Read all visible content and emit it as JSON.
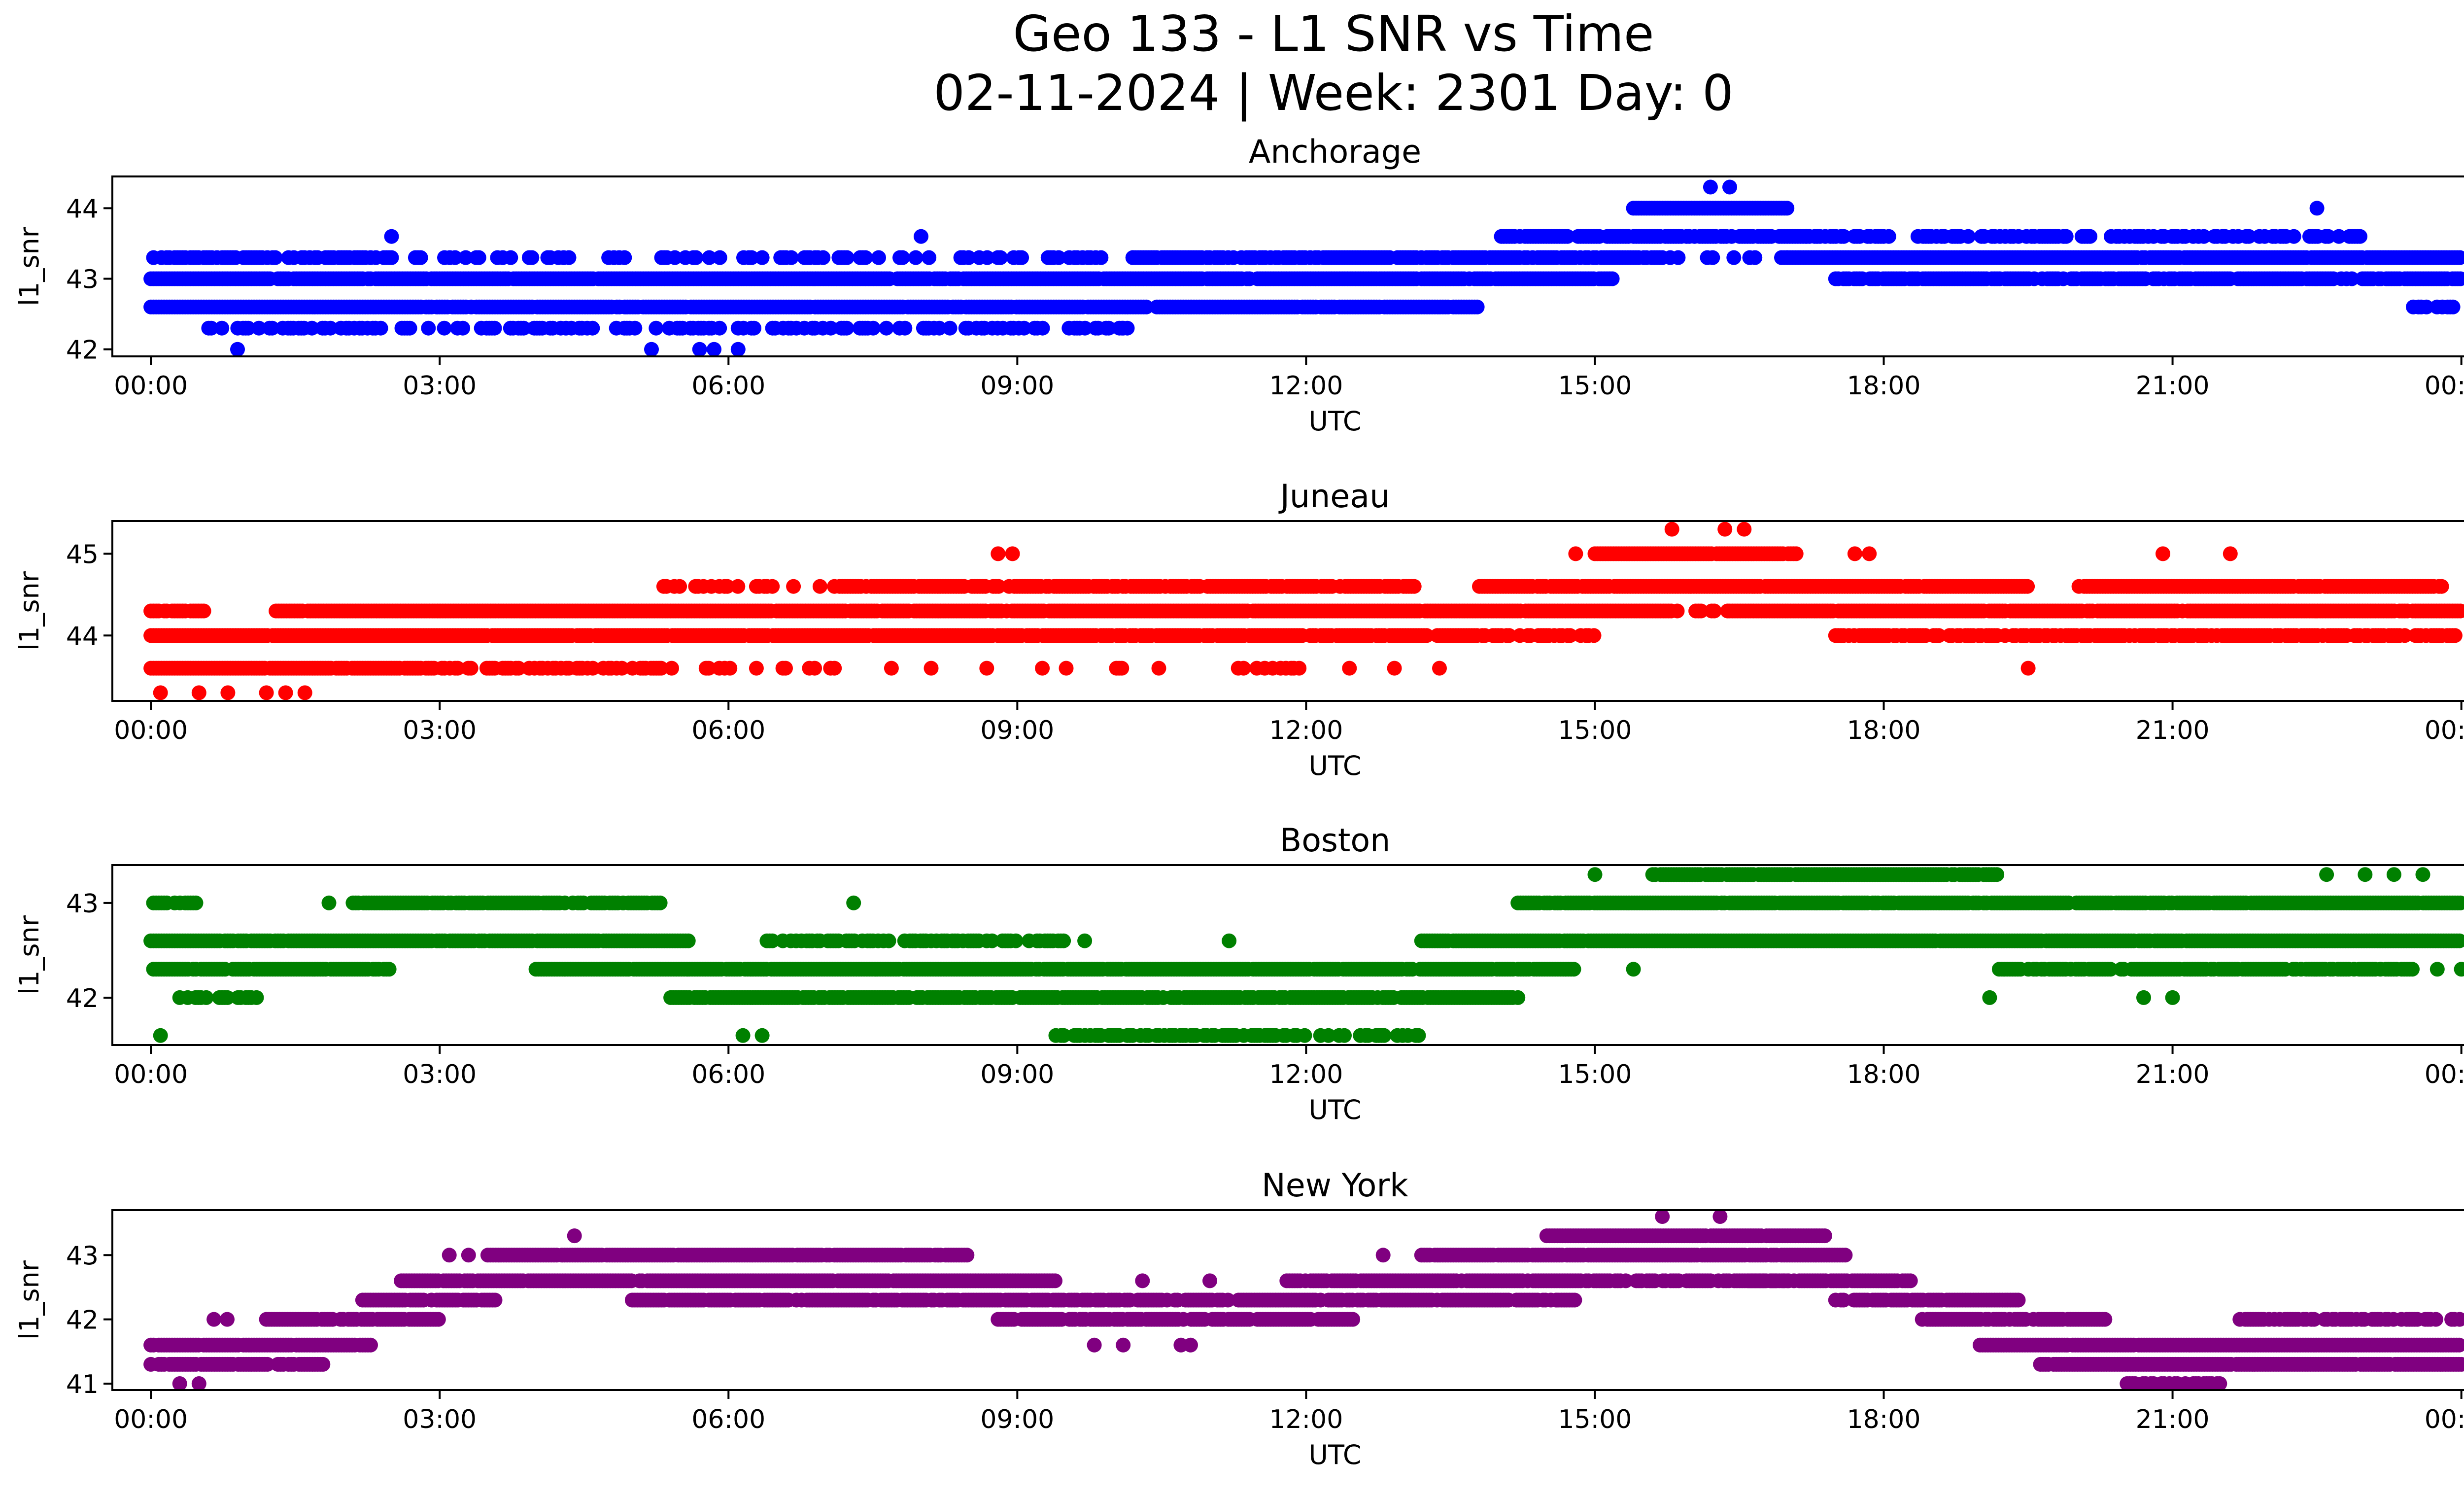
{
  "figure": {
    "title_line1": "Geo 133 - L1 SNR vs Time",
    "title_line2": "02-11-2024 | Week: 2301 Day: 0"
  },
  "chart_data": [
    {
      "type": "scatter",
      "title": "Anchorage",
      "xlabel": "UTC",
      "ylabel": "l1_snr",
      "color": "#0000ff",
      "xlim": [
        -0.4,
        25.0
      ],
      "ylim": [
        41.9,
        44.45
      ],
      "x_ticks": [
        0,
        3,
        6,
        9,
        12,
        15,
        18,
        21,
        24
      ],
      "x_tick_labels": [
        "00:00",
        "03:00",
        "06:00",
        "09:00",
        "12:00",
        "15:00",
        "18:00",
        "21:00",
        "00:00"
      ],
      "y_ticks": [
        42,
        43,
        44
      ],
      "y_tick_labels": [
        "42",
        "43",
        "44"
      ],
      "bands": [
        {
          "y": 43.0,
          "x_start": 0.0,
          "x_end": 15.2,
          "density": 0.97
        },
        {
          "y": 42.6,
          "x_start": 0.0,
          "x_end": 13.8,
          "density": 0.97
        },
        {
          "y": 43.3,
          "x_start": 0.0,
          "x_end": 2.5,
          "density": 0.55
        },
        {
          "y": 43.3,
          "x_start": 2.5,
          "x_end": 10.2,
          "density": 0.3
        },
        {
          "y": 43.3,
          "x_start": 10.2,
          "x_end": 15.7,
          "density": 0.85
        },
        {
          "y": 43.3,
          "x_start": 15.7,
          "x_end": 17.0,
          "density": 0.15
        },
        {
          "y": 43.3,
          "x_start": 17.0,
          "x_end": 24.0,
          "density": 0.97
        },
        {
          "y": 43.6,
          "x_start": 14.0,
          "x_end": 17.2,
          "density": 0.8
        },
        {
          "y": 43.6,
          "x_start": 17.2,
          "x_end": 23.0,
          "density": 0.5
        },
        {
          "y": 43.0,
          "x_start": 17.5,
          "x_end": 24.0,
          "density": 0.8
        },
        {
          "y": 42.3,
          "x_start": 0.6,
          "x_end": 10.3,
          "density": 0.4
        },
        {
          "y": 44.0,
          "x_start": 15.4,
          "x_end": 17.0,
          "density": 0.95
        },
        {
          "y": 42.6,
          "x_start": 23.5,
          "x_end": 24.0,
          "density": 0.6
        }
      ],
      "outliers": [
        {
          "x": 0.9,
          "y": 42.0
        },
        {
          "x": 5.2,
          "y": 42.0
        },
        {
          "x": 5.7,
          "y": 42.0
        },
        {
          "x": 5.85,
          "y": 42.0
        },
        {
          "x": 6.1,
          "y": 42.0
        },
        {
          "x": 2.5,
          "y": 43.6
        },
        {
          "x": 8.0,
          "y": 43.6
        },
        {
          "x": 16.2,
          "y": 44.3
        },
        {
          "x": 16.4,
          "y": 44.3
        },
        {
          "x": 22.5,
          "y": 44.0
        },
        {
          "x": 10.1,
          "y": 42.3
        }
      ]
    },
    {
      "type": "scatter",
      "title": "Juneau",
      "xlabel": "UTC",
      "ylabel": "l1_snr",
      "color": "#ff0000",
      "xlim": [
        -0.4,
        25.0
      ],
      "ylim": [
        43.2,
        45.4
      ],
      "x_ticks": [
        0,
        3,
        6,
        9,
        12,
        15,
        18,
        21,
        24
      ],
      "x_tick_labels": [
        "00:00",
        "03:00",
        "06:00",
        "09:00",
        "12:00",
        "15:00",
        "18:00",
        "21:00",
        "00:00"
      ],
      "y_ticks": [
        44,
        45
      ],
      "y_tick_labels": [
        "44",
        "45"
      ],
      "bands": [
        {
          "y": 44.0,
          "x_start": 0.0,
          "x_end": 8.0,
          "density": 0.97
        },
        {
          "y": 44.0,
          "x_start": 8.0,
          "x_end": 14.0,
          "density": 0.9
        },
        {
          "y": 44.0,
          "x_start": 14.0,
          "x_end": 15.0,
          "density": 0.5
        },
        {
          "y": 44.0,
          "x_start": 17.5,
          "x_end": 24.0,
          "density": 0.75
        },
        {
          "y": 43.6,
          "x_start": 0.0,
          "x_end": 2.5,
          "density": 0.97
        },
        {
          "y": 43.6,
          "x_start": 2.5,
          "x_end": 5.3,
          "density": 0.6
        },
        {
          "y": 43.6,
          "x_start": 5.3,
          "x_end": 13.5,
          "density": 0.12
        },
        {
          "y": 44.3,
          "x_start": 0.0,
          "x_end": 0.6,
          "density": 0.9
        },
        {
          "y": 44.3,
          "x_start": 1.3,
          "x_end": 15.8,
          "density": 0.97
        },
        {
          "y": 44.3,
          "x_start": 15.8,
          "x_end": 16.4,
          "density": 0.4
        },
        {
          "y": 44.3,
          "x_start": 16.4,
          "x_end": 24.0,
          "density": 0.97
        },
        {
          "y": 44.6,
          "x_start": 5.3,
          "x_end": 7.1,
          "density": 0.35
        },
        {
          "y": 44.6,
          "x_start": 7.1,
          "x_end": 13.2,
          "density": 0.85
        },
        {
          "y": 44.6,
          "x_start": 13.8,
          "x_end": 19.5,
          "density": 0.97
        },
        {
          "y": 44.6,
          "x_start": 20.0,
          "x_end": 23.8,
          "density": 0.95
        },
        {
          "y": 45.0,
          "x_start": 15.0,
          "x_end": 17.1,
          "density": 0.95
        }
      ],
      "outliers": [
        {
          "x": 0.1,
          "y": 43.3
        },
        {
          "x": 0.5,
          "y": 43.3
        },
        {
          "x": 0.8,
          "y": 43.3
        },
        {
          "x": 1.2,
          "y": 43.3
        },
        {
          "x": 1.4,
          "y": 43.3
        },
        {
          "x": 1.6,
          "y": 43.3
        },
        {
          "x": 8.8,
          "y": 45.0
        },
        {
          "x": 8.95,
          "y": 45.0
        },
        {
          "x": 14.8,
          "y": 45.0
        },
        {
          "x": 15.8,
          "y": 45.3
        },
        {
          "x": 16.35,
          "y": 45.3
        },
        {
          "x": 16.55,
          "y": 45.3
        },
        {
          "x": 17.7,
          "y": 45.0
        },
        {
          "x": 17.85,
          "y": 45.0
        },
        {
          "x": 20.9,
          "y": 45.0
        },
        {
          "x": 21.6,
          "y": 45.0
        },
        {
          "x": 7.1,
          "y": 43.6
        },
        {
          "x": 19.5,
          "y": 43.6
        }
      ]
    },
    {
      "type": "scatter",
      "title": "Boston",
      "xlabel": "UTC",
      "ylabel": "l1_snr",
      "color": "#008000",
      "xlim": [
        -0.4,
        25.0
      ],
      "ylim": [
        41.5,
        43.4
      ],
      "x_ticks": [
        0,
        3,
        6,
        9,
        12,
        15,
        18,
        21,
        24
      ],
      "x_tick_labels": [
        "00:00",
        "03:00",
        "06:00",
        "09:00",
        "12:00",
        "15:00",
        "18:00",
        "21:00",
        "00:00"
      ],
      "y_ticks": [
        42,
        43
      ],
      "y_tick_labels": [
        "42",
        "43"
      ],
      "bands": [
        {
          "y": 42.6,
          "x_start": 0.0,
          "x_end": 5.6,
          "density": 0.97
        },
        {
          "y": 42.3,
          "x_start": 0.0,
          "x_end": 2.5,
          "density": 0.9
        },
        {
          "y": 42.3,
          "x_start": 4.0,
          "x_end": 14.8,
          "density": 0.95
        },
        {
          "y": 42.0,
          "x_start": 0.3,
          "x_end": 1.1,
          "density": 0.5
        },
        {
          "y": 42.0,
          "x_start": 5.4,
          "x_end": 14.2,
          "density": 0.9
        },
        {
          "y": 43.0,
          "x_start": 2.1,
          "x_end": 5.3,
          "density": 0.85
        },
        {
          "y": 43.0,
          "x_start": 0.0,
          "x_end": 0.5,
          "density": 0.6
        },
        {
          "y": 42.6,
          "x_start": 6.4,
          "x_end": 9.5,
          "density": 0.6
        },
        {
          "y": 42.6,
          "x_start": 13.2,
          "x_end": 24.0,
          "density": 0.97
        },
        {
          "y": 41.6,
          "x_start": 9.4,
          "x_end": 13.2,
          "density": 0.55
        },
        {
          "y": 43.0,
          "x_start": 14.2,
          "x_end": 24.0,
          "density": 0.9
        },
        {
          "y": 43.3,
          "x_start": 15.6,
          "x_end": 19.2,
          "density": 0.95
        },
        {
          "y": 42.3,
          "x_start": 19.2,
          "x_end": 23.5,
          "density": 0.85
        }
      ],
      "outliers": [
        {
          "x": 0.1,
          "y": 41.6
        },
        {
          "x": 6.15,
          "y": 41.6
        },
        {
          "x": 6.35,
          "y": 41.6
        },
        {
          "x": 1.85,
          "y": 43.0
        },
        {
          "x": 7.3,
          "y": 43.0
        },
        {
          "x": 15.0,
          "y": 43.3
        },
        {
          "x": 15.4,
          "y": 42.3
        },
        {
          "x": 19.1,
          "y": 42.0
        },
        {
          "x": 20.7,
          "y": 42.0
        },
        {
          "x": 21.0,
          "y": 42.0
        },
        {
          "x": 22.6,
          "y": 43.3
        },
        {
          "x": 23.0,
          "y": 43.3
        },
        {
          "x": 23.3,
          "y": 43.3
        },
        {
          "x": 23.6,
          "y": 43.3
        },
        {
          "x": 23.75,
          "y": 42.3
        },
        {
          "x": 24.0,
          "y": 42.3
        },
        {
          "x": 9.7,
          "y": 42.6
        },
        {
          "x": 11.2,
          "y": 42.6
        }
      ]
    },
    {
      "type": "scatter",
      "title": "New York",
      "xlabel": "UTC",
      "ylabel": "l1_snr",
      "color": "#800080",
      "xlim": [
        -0.4,
        25.0
      ],
      "ylim": [
        40.9,
        43.7
      ],
      "x_ticks": [
        0,
        3,
        6,
        9,
        12,
        15,
        18,
        21,
        24
      ],
      "x_tick_labels": [
        "00:00",
        "03:00",
        "06:00",
        "09:00",
        "12:00",
        "15:00",
        "18:00",
        "21:00",
        "00:00"
      ],
      "y_ticks": [
        41,
        42,
        43
      ],
      "y_tick_labels": [
        "41",
        "42",
        "43"
      ],
      "bands": [
        {
          "y": 41.6,
          "x_start": 0.0,
          "x_end": 2.3,
          "density": 0.97
        },
        {
          "y": 41.3,
          "x_start": 0.0,
          "x_end": 1.8,
          "density": 0.9
        },
        {
          "y": 42.0,
          "x_start": 0.6,
          "x_end": 0.8,
          "density": 0.6
        },
        {
          "y": 42.0,
          "x_start": 1.2,
          "x_end": 3.0,
          "density": 0.9
        },
        {
          "y": 42.3,
          "x_start": 2.2,
          "x_end": 3.6,
          "density": 0.9
        },
        {
          "y": 42.6,
          "x_start": 2.6,
          "x_end": 9.4,
          "density": 0.97
        },
        {
          "y": 43.0,
          "x_start": 3.5,
          "x_end": 8.5,
          "density": 0.95
        },
        {
          "y": 42.3,
          "x_start": 5.0,
          "x_end": 14.8,
          "density": 0.85
        },
        {
          "y": 42.0,
          "x_start": 8.8,
          "x_end": 12.5,
          "density": 0.9
        },
        {
          "y": 42.6,
          "x_start": 11.8,
          "x_end": 17.0,
          "density": 0.85
        },
        {
          "y": 43.0,
          "x_start": 13.2,
          "x_end": 17.6,
          "density": 0.95
        },
        {
          "y": 43.3,
          "x_start": 14.5,
          "x_end": 17.4,
          "density": 0.97
        },
        {
          "y": 42.6,
          "x_start": 16.6,
          "x_end": 18.3,
          "density": 0.85
        },
        {
          "y": 42.3,
          "x_start": 17.5,
          "x_end": 19.4,
          "density": 0.85
        },
        {
          "y": 42.0,
          "x_start": 18.4,
          "x_end": 20.3,
          "density": 0.85
        },
        {
          "y": 41.6,
          "x_start": 19.0,
          "x_end": 24.0,
          "density": 0.97
        },
        {
          "y": 41.3,
          "x_start": 19.6,
          "x_end": 24.0,
          "density": 0.97
        },
        {
          "y": 42.0,
          "x_start": 21.7,
          "x_end": 24.0,
          "density": 0.6
        },
        {
          "y": 41.0,
          "x_start": 20.5,
          "x_end": 21.5,
          "density": 0.6
        }
      ],
      "outliers": [
        {
          "x": 0.3,
          "y": 41.0
        },
        {
          "x": 0.5,
          "y": 41.0
        },
        {
          "x": 4.4,
          "y": 43.3
        },
        {
          "x": 3.1,
          "y": 43.0
        },
        {
          "x": 3.3,
          "y": 43.0
        },
        {
          "x": 9.8,
          "y": 41.6
        },
        {
          "x": 10.1,
          "y": 41.6
        },
        {
          "x": 10.7,
          "y": 41.6
        },
        {
          "x": 10.8,
          "y": 41.6
        },
        {
          "x": 12.8,
          "y": 43.0
        },
        {
          "x": 15.7,
          "y": 43.6
        },
        {
          "x": 16.3,
          "y": 43.6
        },
        {
          "x": 10.3,
          "y": 42.6
        },
        {
          "x": 11.0,
          "y": 42.6
        },
        {
          "x": 14.6,
          "y": 42.3
        }
      ]
    }
  ]
}
